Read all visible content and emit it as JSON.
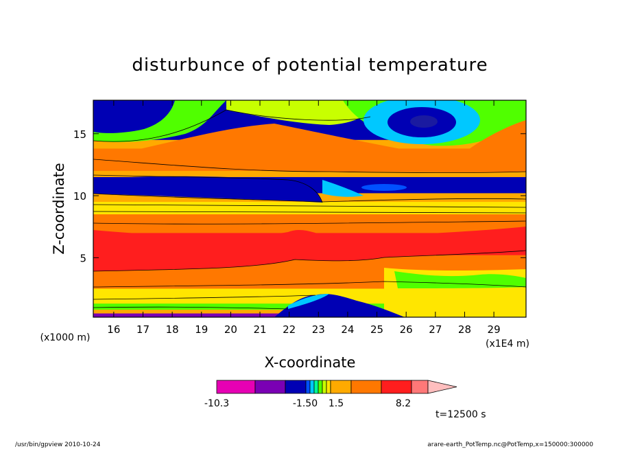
{
  "chart_data": {
    "type": "heatmap",
    "title": "disturbunce of potential temperature",
    "xlabel": "X-coordinate",
    "ylabel": "Z-coordinate",
    "x_unit_left": "(x1000 m)",
    "x_unit_right": "(x1E4 m)",
    "xlim": [
      15.3,
      30.1
    ],
    "ylim": [
      0.2,
      17.7
    ],
    "x_ticks": [
      16,
      17,
      18,
      19,
      20,
      21,
      22,
      23,
      24,
      25,
      26,
      27,
      28,
      29
    ],
    "y_ticks": [
      5,
      10,
      15
    ],
    "time_label": "t=12500 s",
    "colorbar": {
      "tick_labels": [
        "-10.3",
        "-1.50",
        "1.5",
        "8.2"
      ],
      "colors": [
        "#e600b4",
        "#7a00b4",
        "#0000b4",
        "#0050ff",
        "#00c8ff",
        "#00ff96",
        "#50ff00",
        "#c8ff00",
        "#ffe600",
        "#ffaa00",
        "#ff7800",
        "#ff1e1e",
        "#ff7878",
        "#ffbebe"
      ]
    },
    "bands": [
      {
        "name": "bottom-violet",
        "color": "#7a00b4",
        "y": [
          0.2,
          0.5
        ]
      },
      {
        "name": "near-surface-green",
        "color": "#50ff00",
        "y": [
          0.8,
          1.3
        ]
      },
      {
        "name": "low-yellow",
        "color": "#ffe600",
        "y": [
          1.3,
          2.5
        ]
      },
      {
        "name": "lower-orange",
        "color": "#ff7800",
        "y": [
          2.5,
          5.2
        ]
      },
      {
        "name": "mid-red",
        "color": "#ff1e1e",
        "y": [
          5.2,
          7.0
        ]
      },
      {
        "name": "mid-orange",
        "color": "#ff7800",
        "y": [
          7.0,
          8.5
        ]
      },
      {
        "name": "tropopause-yellow",
        "color": "#ffe600",
        "y": [
          8.5,
          9.5
        ]
      },
      {
        "name": "upper-blue",
        "color": "#0000b4",
        "y": [
          10.2,
          11.5
        ]
      },
      {
        "name": "upper-orange",
        "color": "#ff7800",
        "y": [
          12.0,
          13.8
        ]
      },
      {
        "name": "top-blue",
        "color": "#0000b4",
        "y": [
          14.5,
          17.7
        ]
      }
    ]
  },
  "footer": {
    "left": "/usr/bin/gpview   2010-10-24",
    "right": "arare-earth_PotTemp.nc@PotTemp,x=150000:300000"
  }
}
